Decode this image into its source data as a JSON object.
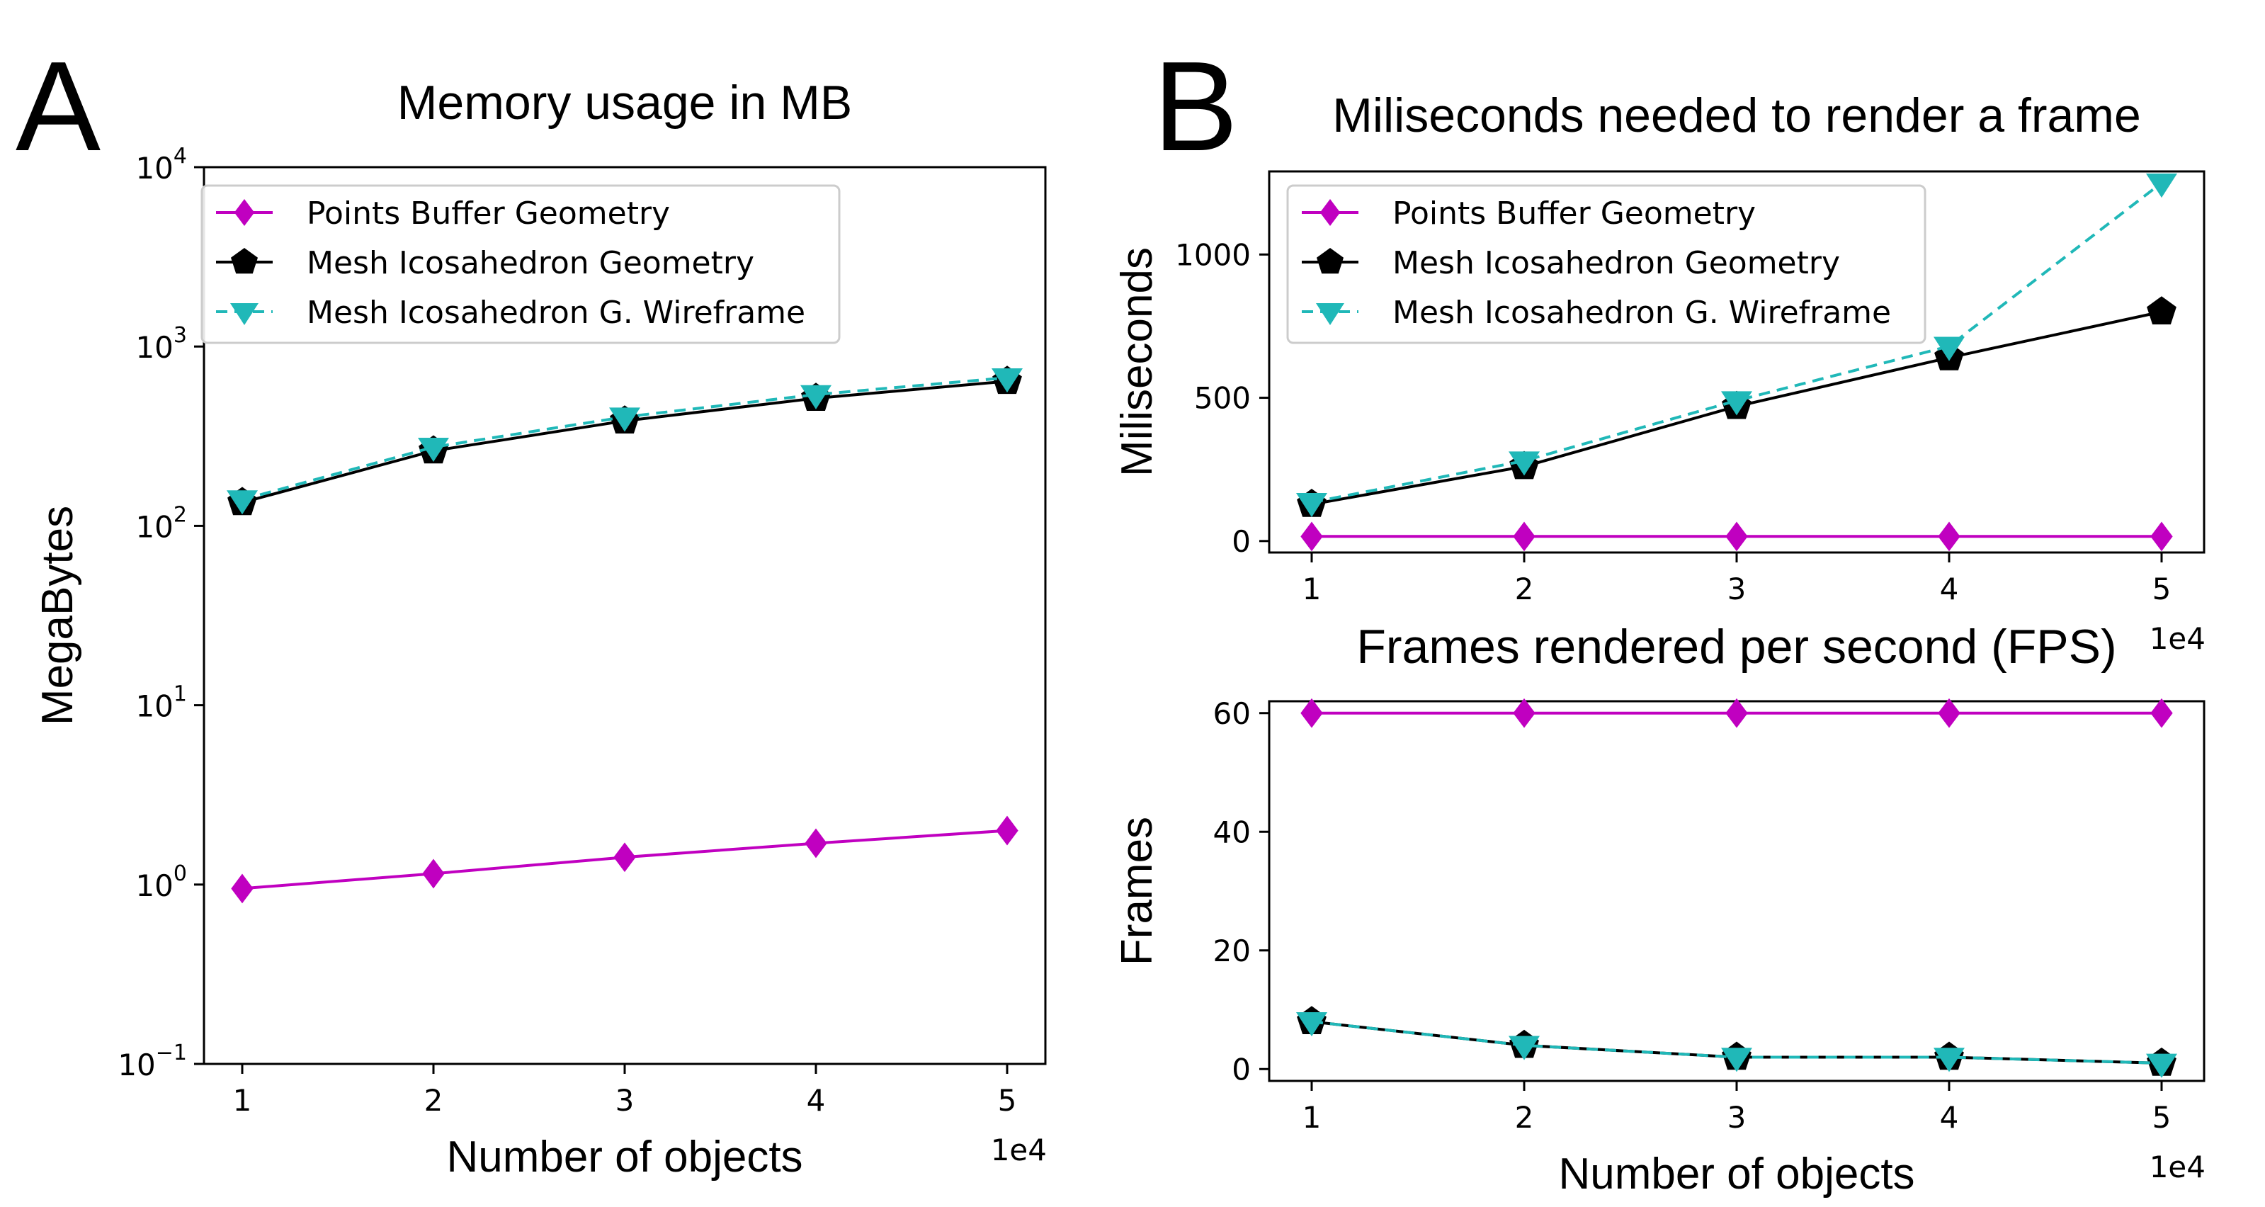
{
  "figure": {
    "panel_labels": [
      "A",
      "B"
    ],
    "colors": {
      "points": "#c000c0",
      "mesh": "#000000",
      "wireframe": "#20b8b8"
    }
  },
  "chart_data": [
    {
      "id": "A",
      "type": "line",
      "title": "Memory usage in MB",
      "xlabel": "Number of objects",
      "ylabel": "MegaBytes",
      "x_offset_label": "1e4",
      "yscale": "log",
      "ylim": [
        0.1,
        10000
      ],
      "xlim": [
        0.8,
        5.2
      ],
      "x": [
        1,
        2,
        3,
        4,
        5
      ],
      "x_ticks": [
        "1",
        "2",
        "3",
        "4",
        "5"
      ],
      "y_ticks": [
        {
          "value": 0.1,
          "base": "10",
          "exp": "−1"
        },
        {
          "value": 1,
          "base": "10",
          "exp": "0"
        },
        {
          "value": 10,
          "base": "10",
          "exp": "1"
        },
        {
          "value": 100,
          "base": "10",
          "exp": "2"
        },
        {
          "value": 1000,
          "base": "10",
          "exp": "3"
        },
        {
          "value": 10000,
          "base": "10",
          "exp": "4"
        }
      ],
      "legend": "top-left",
      "series": [
        {
          "name": "Points Buffer Geometry",
          "key": "points",
          "marker": "diamond",
          "dash": "solid",
          "values": [
            0.95,
            1.15,
            1.42,
            1.7,
            2.0
          ]
        },
        {
          "name": "Mesh Icosahedron Geometry",
          "key": "mesh",
          "marker": "pentagon",
          "dash": "solid",
          "values": [
            135,
            262,
            385,
            515,
            640
          ]
        },
        {
          "name": "Mesh Icosahedron G. Wireframe",
          "key": "wireframe",
          "marker": "triangle-down",
          "dash": "dashed",
          "values": [
            140,
            275,
            405,
            540,
            670
          ]
        }
      ]
    },
    {
      "id": "B1",
      "type": "line",
      "title": "Miliseconds needed to render a frame",
      "xlabel": "",
      "ylabel": "Miliseconds",
      "x_offset_label": "1e4",
      "yscale": "linear",
      "ylim": [
        -40,
        1290
      ],
      "xlim": [
        0.8,
        5.2
      ],
      "x": [
        1,
        2,
        3,
        4,
        5
      ],
      "x_ticks": [
        "1",
        "2",
        "3",
        "4",
        "5"
      ],
      "y_ticks": [
        {
          "value": 0,
          "label": "0"
        },
        {
          "value": 500,
          "label": "500"
        },
        {
          "value": 1000,
          "label": "1000"
        }
      ],
      "legend": "top-left",
      "series": [
        {
          "name": "Points Buffer Geometry",
          "key": "points",
          "marker": "diamond",
          "dash": "solid",
          "values": [
            16,
            16,
            16,
            16,
            16
          ]
        },
        {
          "name": "Mesh Icosahedron Geometry",
          "key": "mesh",
          "marker": "pentagon",
          "dash": "solid",
          "values": [
            128,
            260,
            470,
            640,
            800
          ]
        },
        {
          "name": "Mesh Icosahedron G. Wireframe",
          "key": "wireframe",
          "marker": "triangle-down",
          "dash": "dashed",
          "values": [
            135,
            280,
            490,
            680,
            1250
          ]
        }
      ]
    },
    {
      "id": "B2",
      "type": "line",
      "title": "Frames rendered per second (FPS)",
      "xlabel": "Number of objects",
      "ylabel": "Frames",
      "x_offset_label": "1e4",
      "yscale": "linear",
      "ylim": [
        -2,
        62
      ],
      "xlim": [
        0.8,
        5.2
      ],
      "x": [
        1,
        2,
        3,
        4,
        5
      ],
      "x_ticks": [
        "1",
        "2",
        "3",
        "4",
        "5"
      ],
      "y_ticks": [
        {
          "value": 0,
          "label": "0"
        },
        {
          "value": 20,
          "label": "20"
        },
        {
          "value": 40,
          "label": "40"
        },
        {
          "value": 60,
          "label": "60"
        }
      ],
      "legend": "none",
      "series": [
        {
          "name": "Points Buffer Geometry",
          "key": "points",
          "marker": "diamond",
          "dash": "solid",
          "values": [
            60,
            60,
            60,
            60,
            60
          ]
        },
        {
          "name": "Mesh Icosahedron Geometry",
          "key": "mesh",
          "marker": "pentagon",
          "dash": "solid",
          "values": [
            8,
            4,
            2,
            2,
            1
          ]
        },
        {
          "name": "Mesh Icosahedron G. Wireframe",
          "key": "wireframe",
          "marker": "triangle-down",
          "dash": "dashed",
          "values": [
            8,
            4,
            2,
            2,
            1
          ]
        }
      ]
    }
  ]
}
